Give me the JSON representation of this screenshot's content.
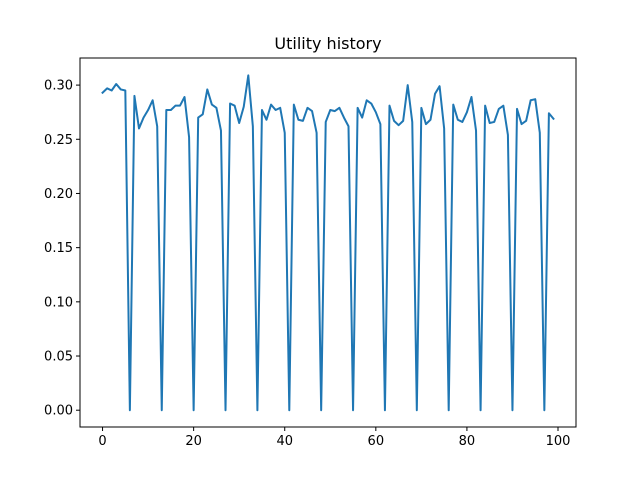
{
  "chart_data": {
    "type": "line",
    "title": "Utility history",
    "xlabel": "",
    "ylabel": "",
    "xlim": [
      -4.95,
      103.95
    ],
    "ylim": [
      -0.0155,
      0.325
    ],
    "xticks": [
      0,
      20,
      40,
      60,
      80,
      100
    ],
    "yticks": [
      0.0,
      0.05,
      0.1,
      0.15,
      0.2,
      0.25,
      0.3
    ],
    "ytick_labels": [
      "0.00",
      "0.05",
      "0.10",
      "0.15",
      "0.20",
      "0.25",
      "0.30"
    ],
    "grid": false,
    "line_color": "#1f77b4",
    "series": [
      {
        "x": [
          0,
          1,
          2,
          3,
          4,
          5,
          6,
          7,
          8,
          9,
          10,
          11,
          12,
          13,
          14,
          15,
          16,
          17,
          18,
          19,
          20,
          21,
          22,
          23,
          24,
          25,
          26,
          27,
          28,
          29,
          30,
          31,
          32,
          33,
          34,
          35,
          36,
          37,
          38,
          39,
          40,
          41,
          42,
          43,
          44,
          45,
          46,
          47,
          48,
          49,
          50,
          51,
          52,
          53,
          54,
          55,
          56,
          57,
          58,
          59,
          60,
          61,
          62,
          63,
          64,
          65,
          66,
          67,
          68,
          69,
          70,
          71,
          72,
          73,
          74,
          75,
          76,
          77,
          78,
          79,
          80,
          81,
          82,
          83,
          84,
          85,
          86,
          87,
          88,
          89,
          90,
          91,
          92,
          93,
          94,
          95,
          96,
          97,
          98,
          99
        ],
        "values": [
          0.293,
          0.297,
          0.295,
          0.301,
          0.296,
          0.295,
          0.0,
          0.29,
          0.26,
          0.27,
          0.277,
          0.286,
          0.262,
          0.0,
          0.277,
          0.277,
          0.281,
          0.281,
          0.289,
          0.252,
          0.0,
          0.27,
          0.273,
          0.296,
          0.282,
          0.279,
          0.258,
          0.0,
          0.283,
          0.281,
          0.265,
          0.28,
          0.309,
          0.262,
          0.0,
          0.277,
          0.268,
          0.282,
          0.277,
          0.279,
          0.256,
          0.0,
          0.282,
          0.268,
          0.267,
          0.279,
          0.276,
          0.256,
          0.0,
          0.266,
          0.277,
          0.276,
          0.279,
          0.27,
          0.262,
          0.0,
          0.279,
          0.27,
          0.286,
          0.283,
          0.275,
          0.264,
          0.0,
          0.281,
          0.267,
          0.263,
          0.267,
          0.3,
          0.266,
          0.0,
          0.279,
          0.264,
          0.268,
          0.292,
          0.299,
          0.26,
          0.0,
          0.282,
          0.268,
          0.266,
          0.275,
          0.289,
          0.258,
          0.0,
          0.281,
          0.265,
          0.266,
          0.278,
          0.281,
          0.254,
          0.0,
          0.278,
          0.264,
          0.267,
          0.286,
          0.287,
          0.256,
          0.0,
          0.274,
          0.269
        ]
      }
    ]
  }
}
